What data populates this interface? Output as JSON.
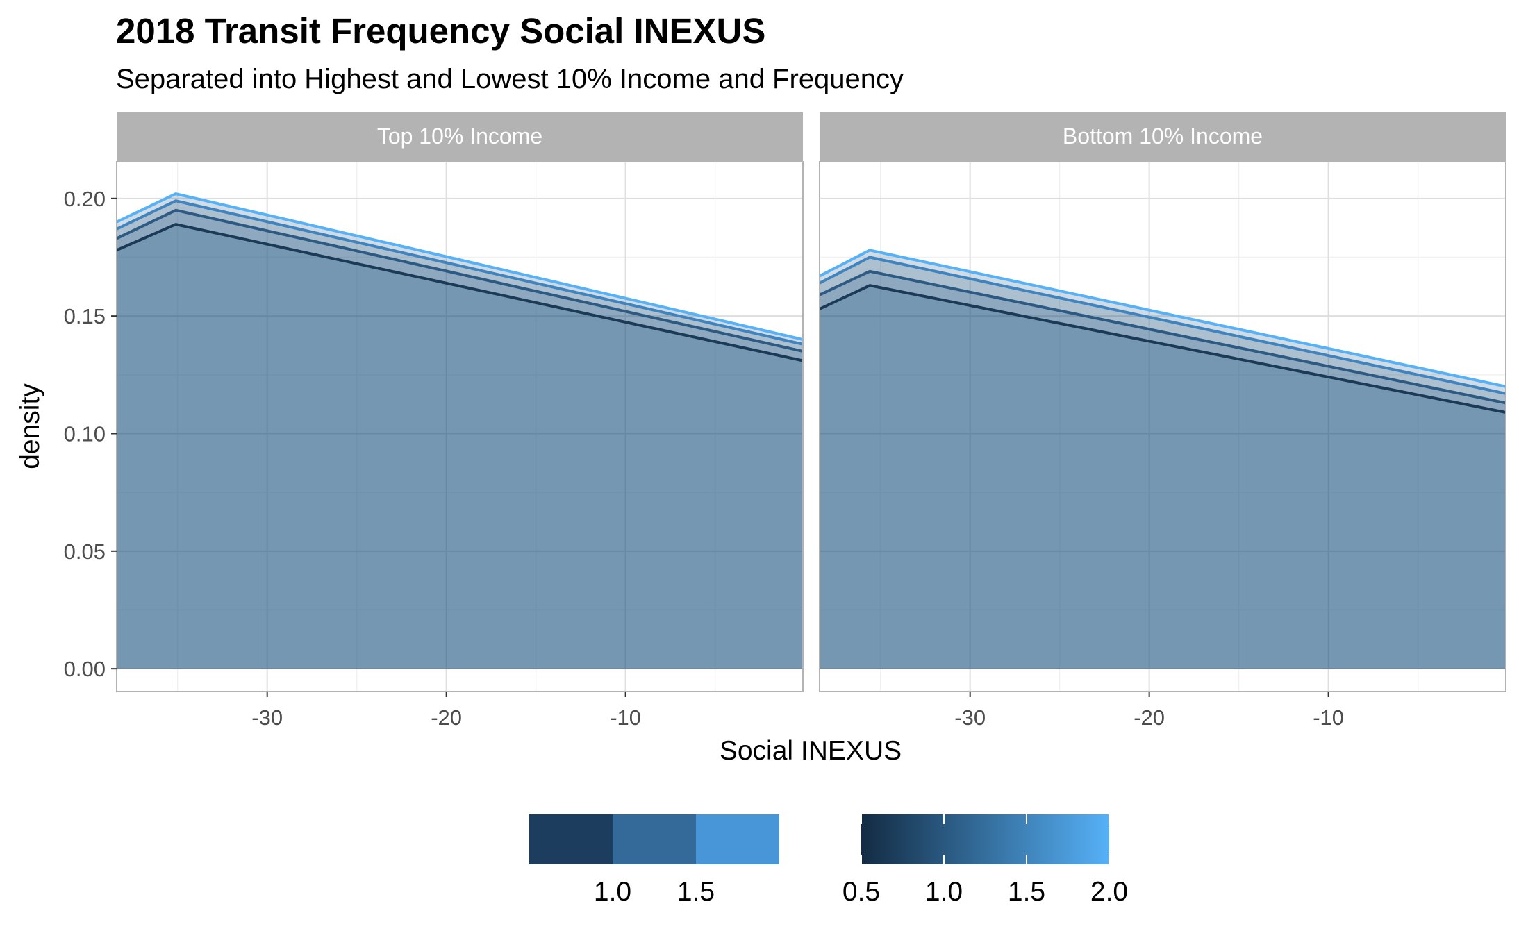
{
  "chart_data": {
    "type": "area",
    "title": "2018 Transit Frequency Social INEXUS",
    "subtitle": "Separated into Highest and Lowest 10% Income and Frequency",
    "xlabel": "Social INEXUS",
    "ylabel": "density",
    "xlim": [
      -38.4,
      -0.1
    ],
    "ylim": [
      -0.0097,
      0.2156
    ],
    "x_ticks": [
      -30,
      -20,
      -10
    ],
    "x_tick_labels": [
      "-30",
      "-20",
      "-10"
    ],
    "y_ticks": [
      0.0,
      0.05,
      0.1,
      0.15,
      0.2
    ],
    "y_tick_labels": [
      "0.00",
      "0.05",
      "0.10",
      "0.15",
      "0.20"
    ],
    "grid": true,
    "panels": [
      {
        "label": "Top 10% Income",
        "series": [
          {
            "level": 0.5,
            "color": "#1b3a57",
            "points": [
              [
                -38.4,
                0.178
              ],
              [
                -35.1,
                0.189
              ],
              [
                -0.1,
                0.131
              ]
            ]
          },
          {
            "level": 1.0,
            "color": "#2c5a82",
            "points": [
              [
                -38.4,
                0.183
              ],
              [
                -35.1,
                0.195
              ],
              [
                -0.1,
                0.135
              ]
            ]
          },
          {
            "level": 1.5,
            "color": "#3f83bf",
            "points": [
              [
                -38.4,
                0.187
              ],
              [
                -35.1,
                0.199
              ],
              [
                -0.1,
                0.138
              ]
            ]
          },
          {
            "level": 2.0,
            "color": "#56b1f7",
            "points": [
              [
                -38.4,
                0.19
              ],
              [
                -35.1,
                0.202
              ],
              [
                -0.1,
                0.14
              ]
            ]
          }
        ]
      },
      {
        "label": "Bottom 10% Income",
        "series": [
          {
            "level": 0.5,
            "color": "#1b3a57",
            "points": [
              [
                -38.4,
                0.153
              ],
              [
                -35.6,
                0.163
              ],
              [
                -0.1,
                0.109
              ]
            ]
          },
          {
            "level": 1.0,
            "color": "#2c5a82",
            "points": [
              [
                -38.4,
                0.159
              ],
              [
                -35.6,
                0.169
              ],
              [
                -0.1,
                0.113
              ]
            ]
          },
          {
            "level": 1.5,
            "color": "#3f83bf",
            "points": [
              [
                -38.4,
                0.164
              ],
              [
                -35.6,
                0.175
              ],
              [
                -0.1,
                0.117
              ]
            ]
          },
          {
            "level": 2.0,
            "color": "#56b1f7",
            "points": [
              [
                -38.4,
                0.167
              ],
              [
                -35.6,
                0.178
              ],
              [
                -0.1,
                0.12
              ]
            ]
          }
        ]
      }
    ],
    "fill_color": "#1b4f7e",
    "fill_opacity": 0.2,
    "legend": {
      "placement": "bottom",
      "discrete": {
        "colors": [
          "#1d3d5f",
          "#336a99",
          "#4896d8"
        ],
        "labels": [
          "1.0",
          "1.5"
        ]
      },
      "continuous": {
        "low_color": "#132b43",
        "high_color": "#56b1f7",
        "range": [
          0.5,
          2.0
        ],
        "labels": [
          "0.5",
          "1.0",
          "1.5",
          "2.0"
        ]
      }
    }
  }
}
